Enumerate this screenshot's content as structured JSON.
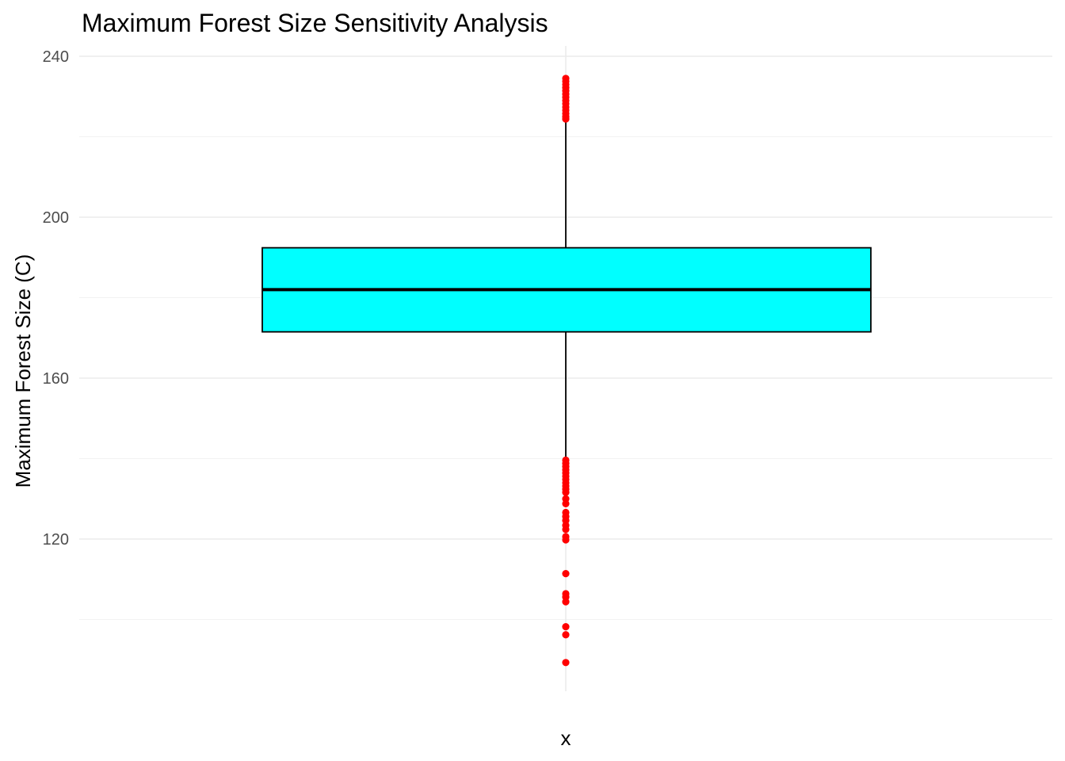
{
  "chart_data": {
    "type": "boxplot",
    "title": "Maximum Forest Size Sensitivity Analysis",
    "xlabel": "x",
    "ylabel": "Maximum Forest Size (C)",
    "ylim": [
      86,
      242
    ],
    "yticks": [
      120,
      160,
      200,
      240
    ],
    "grid": true,
    "box": {
      "q1": 171.5,
      "median": 182,
      "q3": 192.4,
      "whisker_low": 140,
      "whisker_high": 224,
      "fill": "#00ffff",
      "stroke": "#000000"
    },
    "outliers": [
      234.5,
      233.8,
      233,
      232.2,
      231.4,
      230.6,
      229.8,
      229,
      228.2,
      227.4,
      226.6,
      225.8,
      225,
      224.4,
      139.6,
      138.8,
      138,
      137.2,
      136.4,
      135.6,
      134.8,
      134,
      133.2,
      132.4,
      131.6,
      130,
      128.8,
      126.6,
      125.6,
      124.6,
      123.4,
      122.4,
      120.6,
      119.8,
      111.4,
      106.4,
      105.6,
      104.4,
      98.2,
      96.2,
      89.3
    ],
    "outlier_color": "#ff0000"
  }
}
